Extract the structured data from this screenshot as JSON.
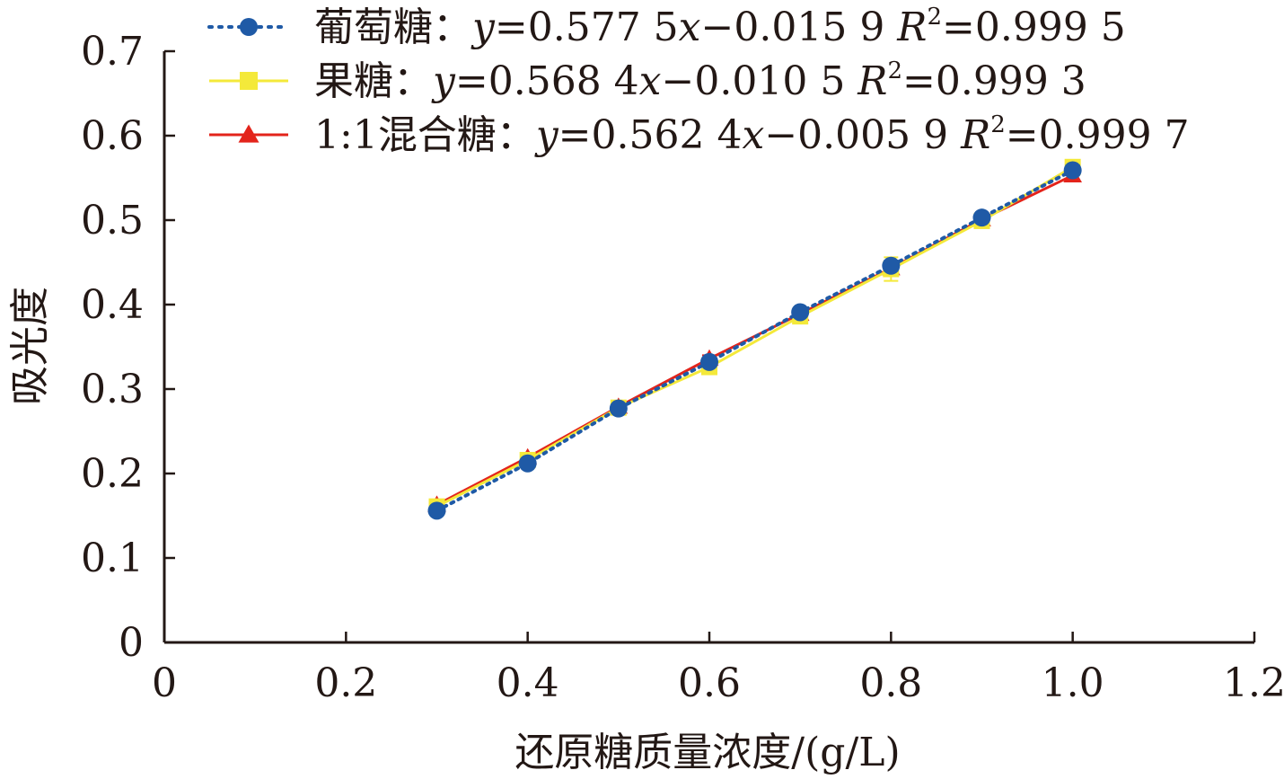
{
  "chart_data": {
    "type": "line",
    "title": "",
    "xlabel": "还原糖质量浓度/(g/L)",
    "ylabel": "吸光度",
    "xlim": [
      0,
      1.2
    ],
    "ylim": [
      0,
      0.7
    ],
    "x_ticks": [
      "0",
      "0.2",
      "0.4",
      "0.6",
      "0.8",
      "1.0",
      "1.2"
    ],
    "y_ticks": [
      "0",
      "0.1",
      "0.2",
      "0.3",
      "0.4",
      "0.5",
      "0.6",
      "0.7"
    ],
    "grid": false,
    "legend_position": "top-left",
    "x": [
      0.3,
      0.4,
      0.5,
      0.6,
      0.7,
      0.8,
      0.9,
      1.0
    ],
    "series": [
      {
        "name": "葡萄糖",
        "equation": "y=0.577 5x−0.015 9 R²=0.999 5",
        "eq_y": "y",
        "eq_mid": "=0.577 5",
        "eq_x": "x",
        "eq_rest": "−0.015 9 ",
        "eq_r": "R",
        "eq_sup": "2",
        "eq_tail": "=0.999 5",
        "color": "#1f5aa6",
        "line_style": "dotted",
        "marker": "circle",
        "values": [
          0.156,
          0.212,
          0.277,
          0.332,
          0.391,
          0.446,
          0.503,
          0.559
        ],
        "errors": [
          0.003,
          0.003,
          0.003,
          0.004,
          0.004,
          0.006,
          0.004,
          0.006
        ]
      },
      {
        "name": "果糖",
        "equation": "y=0.568 4x−0.010 5 R²=0.999 3",
        "eq_y": "y",
        "eq_mid": "=0.568 4",
        "eq_x": "x",
        "eq_rest": "−0.010 5 ",
        "eq_r": "R",
        "eq_sup": "2",
        "eq_tail": "=0.999 3",
        "color": "#f4e93a",
        "line_style": "solid",
        "marker": "square",
        "values": [
          0.161,
          0.216,
          0.278,
          0.326,
          0.386,
          0.442,
          0.499,
          0.563
        ],
        "errors": [
          0.004,
          0.004,
          0.004,
          0.006,
          0.005,
          0.014,
          0.006,
          0.008
        ]
      },
      {
        "name": "1:1混合糖",
        "equation": "y=0.562 4x−0.005 9 R²=0.999 7",
        "eq_y": "y",
        "eq_mid": "=0.562 4",
        "eq_x": "x",
        "eq_rest": "−0.005 9 ",
        "eq_r": "R",
        "eq_sup": "2",
        "eq_tail": "=0.999 7",
        "color": "#e3241b",
        "line_style": "solid",
        "marker": "triangle",
        "values": [
          0.163,
          0.219,
          0.279,
          0.336,
          0.389,
          0.443,
          0.501,
          0.553
        ],
        "errors": [
          0.003,
          0.003,
          0.003,
          0.004,
          0.004,
          0.005,
          0.004,
          0.005
        ]
      }
    ]
  }
}
